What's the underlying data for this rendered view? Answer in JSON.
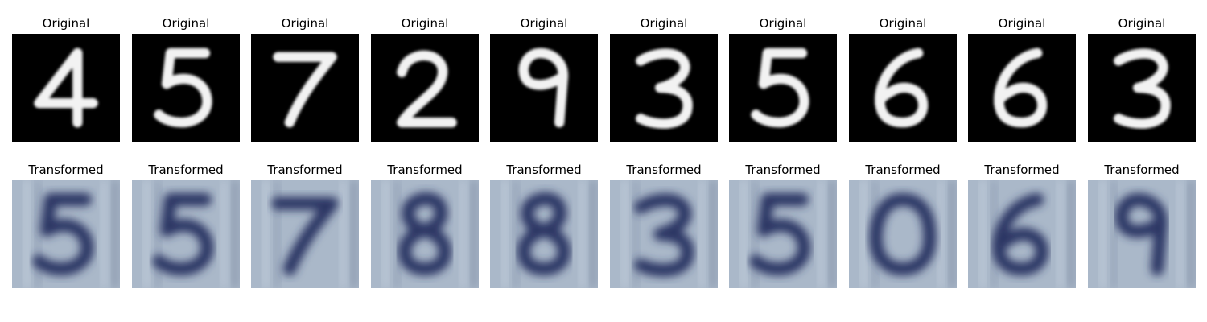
{
  "figure": {
    "rows": [
      {
        "panel_title": "Original",
        "style": "mnist",
        "digits": [
          "4",
          "5",
          "7",
          "2",
          "9",
          "3",
          "5",
          "6",
          "6",
          "3"
        ]
      },
      {
        "panel_title": "Transformed",
        "style": "svhn",
        "digits": [
          "5",
          "5",
          "7",
          "8",
          "8",
          "3",
          "5",
          "0",
          "6",
          "9"
        ]
      }
    ],
    "colors": {
      "mnist_background": "#000000",
      "mnist_stroke": "#f2f2f2",
      "svhn_background": "#aab8c9",
      "svhn_stroke": "#2c3563"
    }
  }
}
